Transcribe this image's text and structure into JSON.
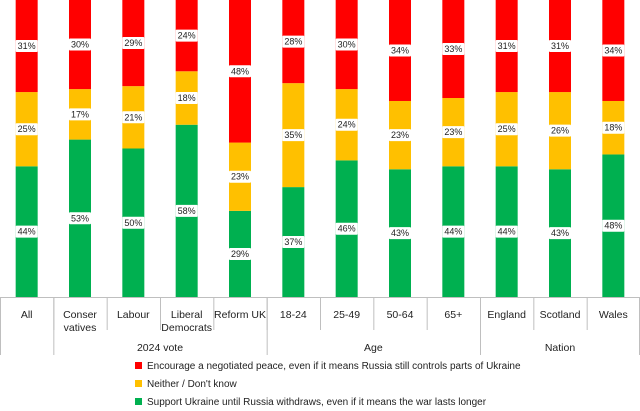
{
  "chart_data": {
    "type": "bar",
    "stacked": true,
    "ylim": [
      0,
      100
    ],
    "categories": [
      "All",
      "Conser vatives",
      "Labour",
      "Liberal Democrats",
      "Reform UK",
      "18-24",
      "25-49",
      "50-64",
      "65+",
      "England",
      "Scotland",
      "Wales"
    ],
    "category_lines": [
      [
        "All"
      ],
      [
        "Conser",
        "vatives"
      ],
      [
        "Labour"
      ],
      [
        "Liberal",
        "Democrats"
      ],
      [
        "Reform UK"
      ],
      [
        "18-24"
      ],
      [
        "25-49"
      ],
      [
        "50-64"
      ],
      [
        "65+"
      ],
      [
        "England"
      ],
      [
        "Scotland"
      ],
      [
        "Wales"
      ]
    ],
    "groups": [
      {
        "label": "2024 vote",
        "start": 1,
        "end": 4
      },
      {
        "label": "Age",
        "start": 5,
        "end": 8
      },
      {
        "label": "Nation",
        "start": 9,
        "end": 11
      }
    ],
    "series": [
      {
        "name": "Support Ukraine until Russia withdraws, even if it means the war lasts longer",
        "color": "#00b050",
        "values": [
          44,
          53,
          50,
          58,
          29,
          37,
          46,
          43,
          44,
          44,
          43,
          48
        ],
        "labels": [
          "44%",
          "53%",
          "50%",
          "58%",
          "29%",
          "37%",
          "46%",
          "43%",
          "44%",
          "44%",
          "43%",
          "48%"
        ]
      },
      {
        "name": "Neither / Don't know",
        "color": "#ffc000",
        "values": [
          25,
          17,
          21,
          18,
          23,
          35,
          24,
          23,
          23,
          25,
          26,
          18
        ],
        "labels": [
          "25%",
          "17%",
          "21%",
          "18%",
          "23%",
          "35%",
          "24%",
          "23%",
          "23%",
          "25%",
          "26%",
          "18%"
        ]
      },
      {
        "name": "Encourage a negotiated peace, even if it means Russia still controls parts of Ukraine",
        "color": "#ff0000",
        "values": [
          31,
          30,
          29,
          24,
          48,
          28,
          30,
          34,
          33,
          31,
          31,
          34
        ],
        "labels": [
          "31%",
          "30%",
          "29%",
          "24%",
          "48%",
          "28%",
          "30%",
          "34%",
          "33%",
          "31%",
          "31%",
          "34%"
        ]
      }
    ],
    "legend": [
      {
        "label": "Encourage a negotiated peace, even if it means Russia still controls parts of Ukraine",
        "color": "#ff0000"
      },
      {
        "label": "Neither / Don't know",
        "color": "#ffc000"
      },
      {
        "label": "Support Ukraine until Russia withdraws, even if it means the war lasts longer",
        "color": "#00b050"
      }
    ],
    "legend_position": "bottom-center"
  }
}
